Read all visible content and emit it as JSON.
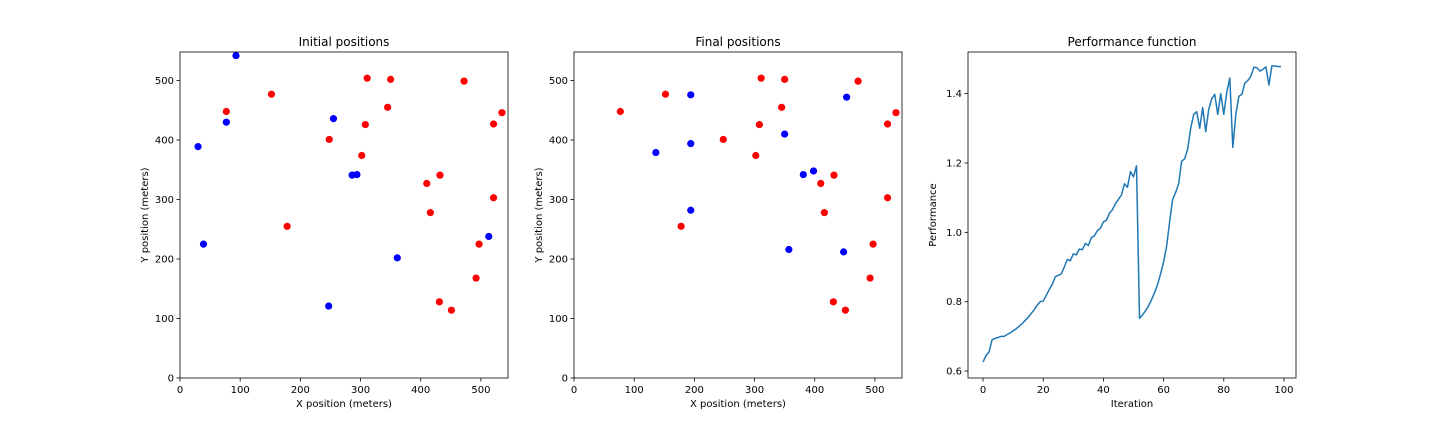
{
  "chart_data": [
    {
      "type": "scatter",
      "title": "Initial positions",
      "xlabel": "X position (meters)",
      "ylabel": "Y position (meters)",
      "xlim": [
        0,
        545
      ],
      "ylim": [
        0,
        548
      ],
      "xticks": [
        0,
        100,
        200,
        300,
        400,
        500
      ],
      "yticks": [
        0,
        100,
        200,
        300,
        400,
        500
      ],
      "grid": false,
      "series": [
        {
          "color": "#ff0000",
          "points": [
            [
              77,
              448
            ],
            [
              152,
              477
            ],
            [
              178,
              255
            ],
            [
              248,
              401
            ],
            [
              302,
              374
            ],
            [
              308,
              426
            ],
            [
              311,
              504
            ],
            [
              345,
              455
            ],
            [
              350,
              502
            ],
            [
              410,
              327
            ],
            [
              416,
              278
            ],
            [
              432,
              341
            ],
            [
              472,
              499
            ],
            [
              521,
              427
            ],
            [
              535,
              446
            ],
            [
              521,
              303
            ],
            [
              497,
              225
            ],
            [
              492,
              168
            ],
            [
              431,
              128
            ],
            [
              451,
              114
            ]
          ]
        },
        {
          "color": "#0000ff",
          "points": [
            [
              93,
              542
            ],
            [
              77,
              430
            ],
            [
              30,
              389
            ],
            [
              39,
              225
            ],
            [
              255,
              436
            ],
            [
              286,
              341
            ],
            [
              294,
              342
            ],
            [
              247,
              121
            ],
            [
              361,
              202
            ],
            [
              513,
              238
            ]
          ]
        }
      ]
    },
    {
      "type": "scatter",
      "title": "Final positions",
      "xlabel": "X position (meters)",
      "ylabel": "Y position (meters)",
      "xlim": [
        0,
        545
      ],
      "ylim": [
        0,
        548
      ],
      "xticks": [
        0,
        100,
        200,
        300,
        400,
        500
      ],
      "yticks": [
        0,
        100,
        200,
        300,
        400,
        500
      ],
      "grid": false,
      "series": [
        {
          "color": "#ff0000",
          "points": [
            [
              77,
              448
            ],
            [
              152,
              477
            ],
            [
              178,
              255
            ],
            [
              248,
              401
            ],
            [
              302,
              374
            ],
            [
              308,
              426
            ],
            [
              311,
              504
            ],
            [
              345,
              455
            ],
            [
              350,
              502
            ],
            [
              410,
              327
            ],
            [
              416,
              278
            ],
            [
              432,
              341
            ],
            [
              472,
              499
            ],
            [
              521,
              427
            ],
            [
              535,
              446
            ],
            [
              521,
              303
            ],
            [
              497,
              225
            ],
            [
              492,
              168
            ],
            [
              431,
              128
            ],
            [
              451,
              114
            ]
          ]
        },
        {
          "color": "#0000ff",
          "points": [
            [
              194,
              476
            ],
            [
              136,
              379
            ],
            [
              194,
              394
            ],
            [
              194,
              282
            ],
            [
              350,
              410
            ],
            [
              381,
              342
            ],
            [
              398,
              348
            ],
            [
              453,
              472
            ],
            [
              357,
              216
            ],
            [
              448,
              212
            ]
          ]
        }
      ]
    },
    {
      "type": "line",
      "title": "Performance function",
      "xlabel": "Iteration",
      "ylabel": "Performance",
      "xlim": [
        -5,
        104
      ],
      "ylim": [
        0.58,
        1.52
      ],
      "xticks": [
        0,
        20,
        40,
        60,
        80,
        100
      ],
      "yticks": [
        0.6,
        0.8,
        1.0,
        1.2,
        1.4
      ],
      "ytick_labels": [
        "0.6",
        "0.8",
        "1.0",
        "1.2",
        "1.4"
      ],
      "grid": false,
      "series": [
        {
          "color": "#1f77b4",
          "x": [
            0,
            1,
            2,
            3,
            4,
            5,
            6,
            7,
            8,
            9,
            10,
            11,
            12,
            13,
            14,
            15,
            16,
            17,
            18,
            19,
            20,
            21,
            22,
            23,
            24,
            25,
            26,
            27,
            28,
            29,
            30,
            31,
            32,
            33,
            34,
            35,
            36,
            37,
            38,
            39,
            40,
            41,
            42,
            43,
            44,
            45,
            46,
            47,
            48,
            49,
            50,
            51,
            52,
            53,
            54,
            55,
            56,
            57,
            58,
            59,
            60,
            61,
            62,
            63,
            64,
            65,
            66,
            67,
            68,
            69,
            70,
            71,
            72,
            73,
            74,
            75,
            76,
            77,
            78,
            79,
            80,
            81,
            82,
            83,
            84,
            85,
            86,
            87,
            88,
            89,
            90,
            91,
            92,
            93,
            94,
            95,
            96,
            97,
            98,
            99
          ],
          "values": [
            0.626,
            0.645,
            0.655,
            0.69,
            0.694,
            0.697,
            0.7,
            0.7,
            0.705,
            0.71,
            0.716,
            0.722,
            0.729,
            0.737,
            0.746,
            0.755,
            0.766,
            0.777,
            0.79,
            0.8,
            0.802,
            0.818,
            0.835,
            0.85,
            0.872,
            0.876,
            0.88,
            0.9,
            0.922,
            0.918,
            0.938,
            0.935,
            0.952,
            0.95,
            0.968,
            0.962,
            0.985,
            0.99,
            1.005,
            1.012,
            1.03,
            1.035,
            1.055,
            1.065,
            1.083,
            1.095,
            1.108,
            1.14,
            1.13,
            1.175,
            1.16,
            1.192,
            0.752,
            0.762,
            0.774,
            0.788,
            0.806,
            0.826,
            0.85,
            0.88,
            0.915,
            0.96,
            1.03,
            1.095,
            1.115,
            1.14,
            1.205,
            1.212,
            1.24,
            1.3,
            1.34,
            1.348,
            1.3,
            1.36,
            1.29,
            1.355,
            1.385,
            1.398,
            1.34,
            1.4,
            1.34,
            1.405,
            1.445,
            1.245,
            1.34,
            1.392,
            1.398,
            1.43,
            1.438,
            1.45,
            1.476,
            1.475,
            1.465,
            1.47,
            1.477,
            1.425,
            1.48,
            1.48,
            1.478,
            1.478
          ]
        }
      ]
    }
  ]
}
